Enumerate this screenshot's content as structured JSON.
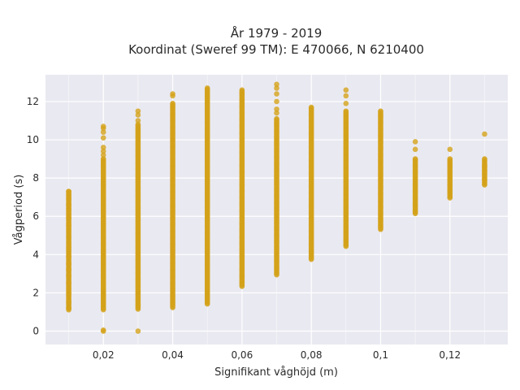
{
  "chart_data": {
    "type": "scatter",
    "title_lines": [
      "År 1979 - 2019",
      "Koordinat (Sweref 99 TM): E 470066, N 6210400"
    ],
    "xlabel": "Signifikant våghöjd (m)",
    "ylabel": "Vågperiod (s)",
    "xlim": [
      0.0033,
      0.1367
    ],
    "ylim": [
      -0.7,
      13.4
    ],
    "x_ticks": [
      0.02,
      0.04,
      0.06,
      0.08,
      0.1,
      0.12
    ],
    "x_tick_labels": [
      "0,02",
      "0,04",
      "0,06",
      "0,08",
      "0,1",
      "0,12"
    ],
    "y_ticks": [
      0,
      2,
      4,
      6,
      8,
      10,
      12
    ],
    "y_tick_labels": [
      "0",
      "2",
      "4",
      "6",
      "8",
      "10",
      "12"
    ],
    "grid": true,
    "marker_color": "#d4a21a",
    "background_color": "#e9e9f1",
    "columns": [
      {
        "x": 0.01,
        "y_min": 1.1,
        "y_max": 7.3,
        "outliers": [
          1.2,
          1.5,
          2.0,
          2.5,
          2.9,
          3.2,
          3.5,
          3.9,
          4.4,
          5.5,
          5.9,
          6.1,
          6.4,
          6.6,
          6.9,
          7.1,
          7.3
        ]
      },
      {
        "x": 0.02,
        "y_min": 1.1,
        "y_max": 9.0,
        "outliers": [
          0.0,
          0.05,
          9.2,
          9.4,
          9.6,
          10.1,
          10.4,
          10.6,
          10.7
        ]
      },
      {
        "x": 0.03,
        "y_min": 1.1,
        "y_max": 10.8,
        "outliers": [
          0.0,
          11.0,
          11.3,
          11.5
        ]
      },
      {
        "x": 0.04,
        "y_min": 1.2,
        "y_max": 11.9,
        "outliers": [
          12.3,
          12.4
        ]
      },
      {
        "x": 0.05,
        "y_min": 1.4,
        "y_max": 12.7,
        "outliers": []
      },
      {
        "x": 0.06,
        "y_min": 2.3,
        "y_max": 12.6,
        "outliers": []
      },
      {
        "x": 0.07,
        "y_min": 2.9,
        "y_max": 11.1,
        "outliers": [
          11.4,
          11.6,
          12.0,
          12.4,
          12.7,
          12.9
        ]
      },
      {
        "x": 0.08,
        "y_min": 3.7,
        "y_max": 11.7,
        "outliers": []
      },
      {
        "x": 0.09,
        "y_min": 4.4,
        "y_max": 11.5,
        "outliers": [
          11.9,
          12.3,
          12.6
        ]
      },
      {
        "x": 0.1,
        "y_min": 5.3,
        "y_max": 11.5,
        "outliers": []
      },
      {
        "x": 0.11,
        "y_min": 6.1,
        "y_max": 9.0,
        "outliers": [
          9.5,
          9.9
        ]
      },
      {
        "x": 0.12,
        "y_min": 6.9,
        "y_max": 9.0,
        "outliers": [
          9.5
        ]
      },
      {
        "x": 0.13,
        "y_min": 7.6,
        "y_max": 9.0,
        "outliers": [
          7.9,
          8.2,
          8.4,
          8.6,
          10.3
        ]
      }
    ]
  }
}
